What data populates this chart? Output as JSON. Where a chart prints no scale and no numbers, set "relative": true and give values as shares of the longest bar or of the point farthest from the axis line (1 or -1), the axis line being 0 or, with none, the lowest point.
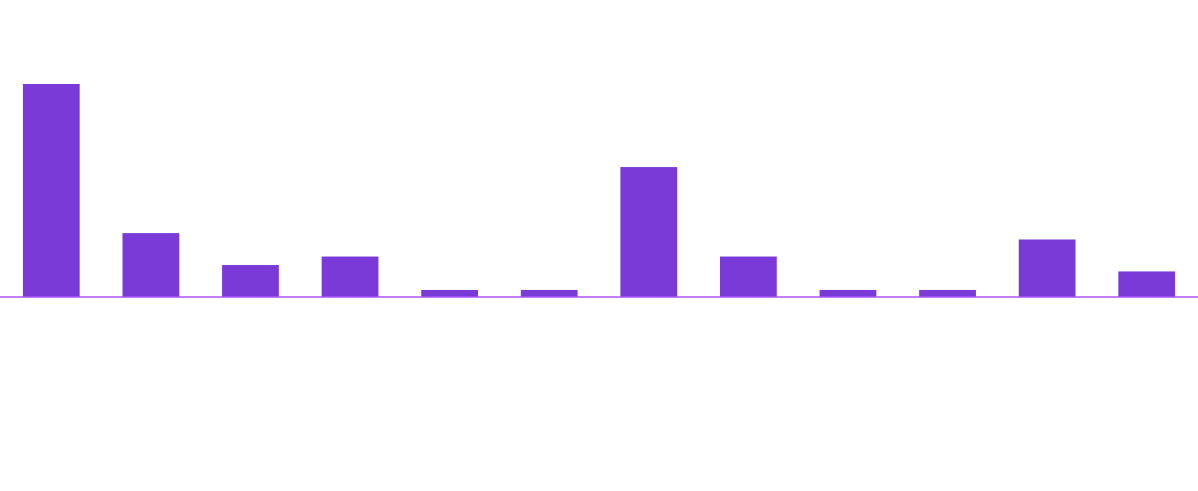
{
  "chart_data": {
    "type": "bar",
    "relative": true,
    "categories": [
      null,
      null,
      null,
      null,
      null,
      null,
      null,
      null,
      null,
      null,
      null,
      null
    ],
    "values": [
      1,
      0.3,
      0.15,
      0.19,
      0.033,
      0.033,
      0.61,
      0.19,
      0.033,
      0.033,
      0.27,
      0.12
    ],
    "color": "#7a3ad8"
  }
}
